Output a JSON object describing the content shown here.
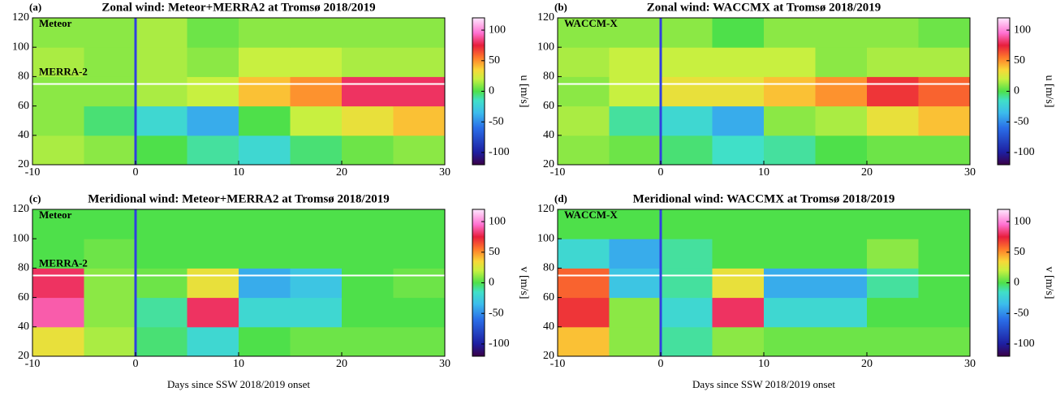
{
  "colorscale": [
    [
      -120,
      "#3a0046"
    ],
    [
      -100,
      "#1e1ea0"
    ],
    [
      -60,
      "#2a6ee8"
    ],
    [
      -35,
      "#3cbcec"
    ],
    [
      -15,
      "#40e0c8"
    ],
    [
      0,
      "#4ee04a"
    ],
    [
      20,
      "#c8f040"
    ],
    [
      35,
      "#f8d838"
    ],
    [
      55,
      "#ff7a2a"
    ],
    [
      75,
      "#e81e3c"
    ],
    [
      95,
      "#ff70d0"
    ],
    [
      120,
      "#ffe8ff"
    ]
  ],
  "chart_data": [
    {
      "type": "heatmap",
      "label": "(a)",
      "title": "Zonal wind: Meteor+MERRA2 at Tromsø 2018/2019",
      "annotations": [
        "Meteor",
        "MERRA-2"
      ],
      "colorbar_label": "u [m/s]",
      "xlim": [
        -10,
        30
      ],
      "xticks": [
        -10,
        0,
        10,
        20,
        30
      ],
      "ylim": [
        20,
        120
      ],
      "yticks": [
        20,
        40,
        60,
        80,
        100,
        120
      ],
      "clim": [
        -120,
        120
      ],
      "cticks": [
        -100,
        -50,
        0,
        50,
        100
      ],
      "x_edges": [
        -10,
        -5,
        0,
        5,
        10,
        15,
        20,
        25,
        30
      ],
      "y_edges": [
        20,
        40,
        60,
        80,
        100,
        120
      ],
      "z": [
        [
          15,
          10,
          0,
          -10,
          -20,
          -5,
          5,
          10
        ],
        [
          10,
          -5,
          -20,
          -40,
          0,
          20,
          30,
          40
        ],
        [
          10,
          10,
          15,
          20,
          40,
          50,
          80,
          80
        ],
        [
          15,
          10,
          15,
          10,
          20,
          20,
          15,
          15
        ],
        [
          10,
          10,
          15,
          5,
          10,
          10,
          10,
          10
        ]
      ],
      "hlines": [
        75
      ],
      "hline_color": "#ffffff",
      "vlines": [
        0
      ],
      "vline_color": "#3040e0"
    },
    {
      "type": "heatmap",
      "label": "(b)",
      "title": "Zonal wind: WACCMX at Tromsø 2018/2019",
      "annotations": [
        "WACCM-X"
      ],
      "colorbar_label": "u [m/s]",
      "xlim": [
        -10,
        30
      ],
      "xticks": [
        -10,
        0,
        10,
        20,
        30
      ],
      "ylim": [
        20,
        120
      ],
      "yticks": [
        20,
        40,
        60,
        80,
        100,
        120
      ],
      "clim": [
        -120,
        120
      ],
      "cticks": [
        -100,
        -50,
        0,
        50,
        100
      ],
      "x_edges": [
        -10,
        -5,
        0,
        5,
        10,
        15,
        20,
        25,
        30
      ],
      "y_edges": [
        20,
        40,
        60,
        80,
        100,
        120
      ],
      "z": [
        [
          10,
          5,
          -5,
          -15,
          -10,
          0,
          5,
          5
        ],
        [
          15,
          -10,
          -20,
          -40,
          10,
          15,
          30,
          40
        ],
        [
          10,
          20,
          30,
          30,
          40,
          50,
          70,
          60
        ],
        [
          15,
          20,
          20,
          20,
          20,
          10,
          15,
          15
        ],
        [
          10,
          10,
          10,
          0,
          10,
          10,
          10,
          5
        ]
      ],
      "hlines": [
        75
      ],
      "hline_color": "#ffffff",
      "vlines": [
        0
      ],
      "vline_color": "#3040e0"
    },
    {
      "type": "heatmap",
      "label": "(c)",
      "title": "Meridional wind: Meteor+MERRA2 at Tromsø 2018/2019",
      "annotations": [
        "Meteor",
        "MERRA-2"
      ],
      "colorbar_label": "v [m/s]",
      "xlabel": "Days since SSW 2018/2019 onset",
      "xlim": [
        -10,
        30
      ],
      "xticks": [
        -10,
        0,
        10,
        20,
        30
      ],
      "ylim": [
        20,
        120
      ],
      "yticks": [
        20,
        40,
        60,
        80,
        100,
        120
      ],
      "clim": [
        -120,
        120
      ],
      "cticks": [
        -100,
        -50,
        0,
        50,
        100
      ],
      "x_edges": [
        -10,
        -5,
        0,
        5,
        10,
        15,
        20,
        25,
        30
      ],
      "y_edges": [
        20,
        40,
        60,
        80,
        100,
        120
      ],
      "z": [
        [
          30,
          15,
          -5,
          -20,
          0,
          5,
          5,
          5
        ],
        [
          90,
          10,
          -10,
          80,
          -20,
          -20,
          0,
          0
        ],
        [
          80,
          10,
          5,
          30,
          -40,
          -30,
          0,
          5
        ],
        [
          0,
          5,
          0,
          0,
          0,
          0,
          0,
          0
        ],
        [
          0,
          0,
          0,
          0,
          0,
          0,
          0,
          0
        ]
      ],
      "hlines": [
        75
      ],
      "hline_color": "#ffffff",
      "vlines": [
        0
      ],
      "vline_color": "#3040e0"
    },
    {
      "type": "heatmap",
      "label": "(d)",
      "title": "Meridional wind: WACCMX at Tromsø 2018/2019",
      "annotations": [
        "WACCM-X"
      ],
      "colorbar_label": "v [m/s]",
      "xlabel": "Days since SSW 2018/2019 onset",
      "xlim": [
        -10,
        30
      ],
      "xticks": [
        -10,
        0,
        10,
        20,
        30
      ],
      "ylim": [
        20,
        120
      ],
      "yticks": [
        20,
        40,
        60,
        80,
        100,
        120
      ],
      "clim": [
        -120,
        120
      ],
      "cticks": [
        -100,
        -50,
        0,
        50,
        100
      ],
      "x_edges": [
        -10,
        -5,
        0,
        5,
        10,
        15,
        20,
        25,
        30
      ],
      "y_edges": [
        20,
        40,
        60,
        80,
        100,
        120
      ],
      "z": [
        [
          40,
          10,
          -10,
          10,
          5,
          5,
          5,
          5
        ],
        [
          70,
          10,
          -20,
          80,
          -20,
          -20,
          0,
          0
        ],
        [
          60,
          -30,
          -10,
          30,
          -40,
          -40,
          -10,
          0
        ],
        [
          -20,
          -40,
          -10,
          0,
          0,
          0,
          10,
          0
        ],
        [
          0,
          0,
          0,
          0,
          0,
          0,
          0,
          0
        ]
      ],
      "hlines": [
        75
      ],
      "hline_color": "#ffffff",
      "vlines": [
        0
      ],
      "vline_color": "#3040e0"
    }
  ]
}
